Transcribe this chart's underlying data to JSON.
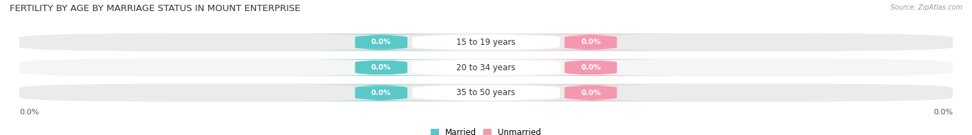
{
  "title": "FERTILITY BY AGE BY MARRIAGE STATUS IN MOUNT ENTERPRISE",
  "source": "Source: ZipAtlas.com",
  "categories": [
    "15 to 19 years",
    "20 to 34 years",
    "35 to 50 years"
  ],
  "married_values": [
    0.0,
    0.0,
    0.0
  ],
  "unmarried_values": [
    0.0,
    0.0,
    0.0
  ],
  "married_color": "#5bc8c8",
  "unmarried_color": "#f498b0",
  "bar_bg_color_odd": "#ebebeb",
  "bar_bg_color_even": "#f5f5f5",
  "title_fontsize": 9.5,
  "label_fontsize": 8.5,
  "value_fontsize": 7.5,
  "axis_label_fontsize": 8,
  "legend_married": "Married",
  "legend_unmarried": "Unmarried",
  "background_color": "#ffffff"
}
